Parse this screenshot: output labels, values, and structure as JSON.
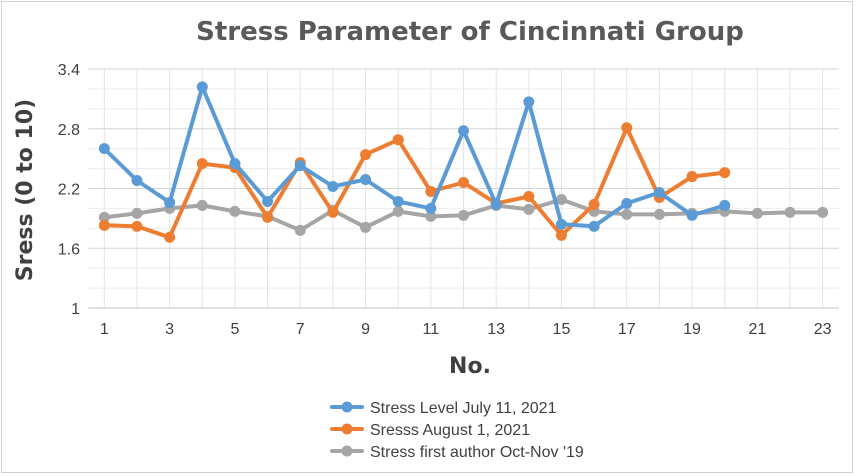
{
  "chart_data": {
    "type": "line",
    "title": "Stress Parameter of Cincinnati Group",
    "xlabel": "No.",
    "ylabel": "Sress (0 to 10)",
    "xlim": [
      0.5,
      23.5
    ],
    "ylim": [
      1,
      3.4
    ],
    "x_ticks": [
      1,
      3,
      5,
      7,
      9,
      11,
      13,
      15,
      17,
      19,
      21,
      23
    ],
    "x_tick_labels": [
      "1",
      "3",
      "5",
      "7",
      "9",
      "11",
      "13",
      "15",
      "17",
      "19",
      "21",
      "23"
    ],
    "y_ticks": [
      1,
      1.6,
      2.2,
      2.8,
      3.4
    ],
    "y_tick_labels": [
      "1",
      "1.6",
      "2.2",
      "2.8",
      "3.4"
    ],
    "grid": true,
    "legend_position": "bottom",
    "series": [
      {
        "name": "Stress Level July 11, 2021",
        "color": "#5b9bd5",
        "x": [
          1,
          2,
          3,
          4,
          5,
          6,
          7,
          8,
          9,
          10,
          11,
          12,
          13,
          14,
          15,
          16,
          17,
          18,
          19,
          20
        ],
        "values": [
          2.6,
          2.28,
          2.06,
          3.22,
          2.45,
          2.07,
          2.43,
          2.22,
          2.29,
          2.07,
          2.0,
          2.78,
          2.04,
          3.07,
          1.84,
          1.82,
          2.05,
          2.16,
          1.93,
          2.03
        ]
      },
      {
        "name": "Sresss August 1, 2021",
        "color": "#ed7d31",
        "x": [
          1,
          2,
          3,
          4,
          5,
          6,
          7,
          8,
          9,
          10,
          11,
          12,
          13,
          14,
          15,
          16,
          17,
          18,
          19,
          20
        ],
        "values": [
          1.83,
          1.82,
          1.71,
          2.45,
          2.41,
          1.91,
          2.46,
          1.96,
          2.54,
          2.69,
          2.17,
          2.26,
          2.05,
          2.12,
          1.73,
          2.04,
          2.81,
          2.11,
          2.32,
          2.36
        ]
      },
      {
        "name": "Stress first author Oct-Nov '19",
        "color": "#a5a5a5",
        "x": [
          1,
          2,
          3,
          4,
          5,
          6,
          7,
          8,
          9,
          10,
          11,
          12,
          13,
          14,
          15,
          16,
          17,
          18,
          19,
          20,
          21,
          22,
          23
        ],
        "values": [
          1.91,
          1.95,
          2.0,
          2.03,
          1.97,
          1.92,
          1.78,
          1.98,
          1.81,
          1.97,
          1.92,
          1.93,
          2.03,
          1.99,
          2.09,
          1.97,
          1.94,
          1.94,
          1.95,
          1.97,
          1.95,
          1.96,
          1.96
        ]
      }
    ]
  }
}
